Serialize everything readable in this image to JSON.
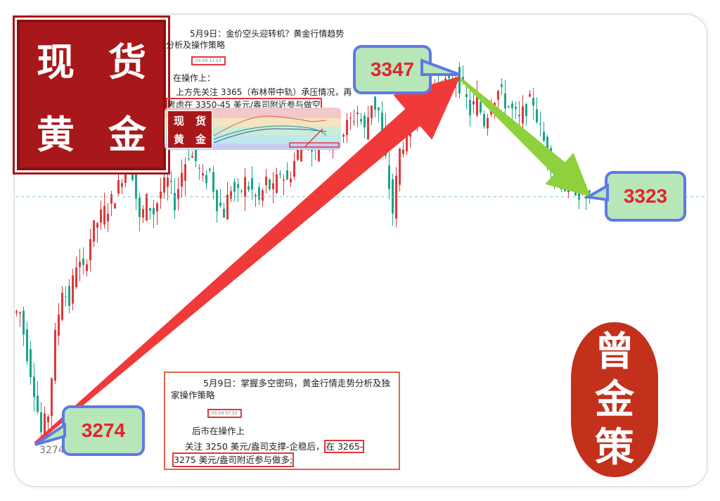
{
  "chart_data": {
    "type": "candlestick",
    "title": "",
    "reference_line": 3323,
    "low_label": "3274.43",
    "closes": [
      3300,
      3292,
      3285,
      3276,
      3280,
      3295,
      3305,
      3302,
      3310,
      3308,
      3315,
      3318,
      3320,
      3322,
      3325,
      3330,
      3328,
      3318,
      3322,
      3320,
      3324,
      3326,
      3322,
      3328,
      3332,
      3330,
      3326,
      3328,
      3322,
      3320,
      3325,
      3323,
      3326,
      3324,
      3322,
      3326,
      3324,
      3328,
      3326,
      3330,
      3334,
      3336,
      3332,
      3338,
      3334,
      3337,
      3336,
      3338,
      3340,
      3336,
      3342,
      3340,
      3330,
      3320,
      3332,
      3336,
      3340,
      3342,
      3340,
      3344,
      3346,
      3345,
      3347,
      3344,
      3340,
      3342,
      3338,
      3342,
      3344,
      3342,
      3340,
      3338,
      3341,
      3342,
      3336,
      3332,
      3328,
      3326,
      3324,
      3325,
      3323,
      3323
    ],
    "up_color": "#e0373b",
    "down_color": "#1aa58a",
    "callouts": [
      {
        "label": "3274",
        "value": 3274
      },
      {
        "label": "3347",
        "value": 3347
      },
      {
        "label": "3323",
        "value": 3323
      }
    ],
    "arrow_colors": {
      "up": "#f03a3a",
      "down": "#8ed13c"
    }
  },
  "logo": {
    "chars": [
      "现",
      "货",
      "黄",
      "金"
    ]
  },
  "seal": {
    "chars": [
      "曾",
      "金",
      "策"
    ]
  },
  "note_top": {
    "title": "5月9日：金价空头迎转机？黄金行情趋势分析及操作策略",
    "stamp": "05-09 11:53",
    "heading": "在操作上：",
    "line1": "上方先关注 3365（布林带中轨）承压情况，再",
    "line2": "考虑在 3350-45 美元/盎司附近参与做空"
  },
  "note_bottom": {
    "title": "5月9日：掌握多空密码，黄金行情走势分析及独家操作策略",
    "stamp": "05-09 07:52",
    "heading": "后市在操作上",
    "line1a": "关注 3250 美元/盎司支撑-企稳后，",
    "line1b": "在 3265-",
    "line2": "3275  美元/盎司附近参与做多;"
  }
}
